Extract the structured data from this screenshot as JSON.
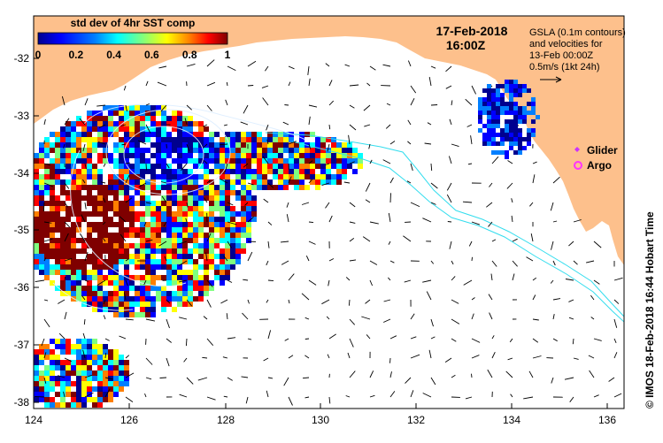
{
  "colorbar": {
    "title": "std dev of 4hr SST comp",
    "ticks": [
      "0",
      "0.2",
      "0.4",
      "0.6",
      "0.8",
      "1"
    ],
    "colors": [
      "#00008f",
      "#0000ff",
      "#007fff",
      "#00ffff",
      "#7fff7f",
      "#ffff00",
      "#ff7f00",
      "#ff0000",
      "#7f0000"
    ]
  },
  "header": {
    "date": "17-Feb-2018",
    "time": "16:00Z"
  },
  "legend": {
    "line1": "GSLA (0.1m contours)",
    "line2": "and velocities for",
    "line3": "13-Feb 00:00Z",
    "line4": "0.5m/s (1kt 24h)",
    "glider_label": "Glider",
    "argo_label": "Argo",
    "glider_color": "#cc33ff",
    "argo_color": "#ff33ff"
  },
  "axes": {
    "lat_labels": [
      "-32",
      "-33",
      "-34",
      "-35",
      "-36",
      "-37",
      "-38"
    ],
    "lon_labels": [
      "124",
      "126",
      "128",
      "130",
      "132",
      "134",
      "136"
    ]
  },
  "credit": "© IMOS 18-Feb-2018 16:44 Hobart Time",
  "colors": {
    "land": "#fdc08c",
    "contour": "#33ddee",
    "gsla_contour": "#ddeeff",
    "vector": "#000000"
  }
}
